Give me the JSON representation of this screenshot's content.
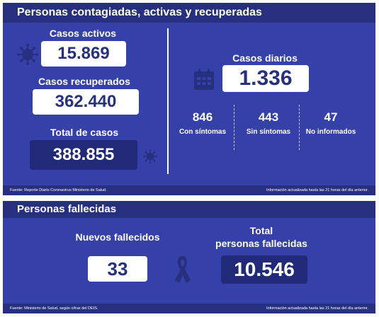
{
  "top": {
    "title": "Personas contagiadas, activas y recuperadas",
    "active_label": "Casos activos",
    "active_value": "15.869",
    "recovered_label": "Casos recuperados",
    "recovered_value": "362.440",
    "total_label": "Total de casos",
    "total_value": "388.855",
    "daily_label": "Casos diarios",
    "daily_value": "1.336",
    "breakdown": [
      {
        "value": "846",
        "label": "Con síntomas"
      },
      {
        "value": "443",
        "label": "Sin síntomas"
      },
      {
        "value": "47",
        "label": "No informados"
      }
    ],
    "footer_source": "Fuente: Reporte Diario Coronavirus Ministerio de Salud.",
    "footer_update": "Información actualizada hasta las 21 horas del día anterior."
  },
  "bottom": {
    "title": "Personas fallecidas",
    "new_label": "Nuevos fallecidos",
    "new_value": "33",
    "total_label_1": "Total",
    "total_label_2": "personas fallecidas",
    "total_value": "10.546",
    "footer_source": "Fuente: Ministerio de Salud, según cifras del DEIS.",
    "footer_update": "Información actualizada hasta las 21 horas del día anterior."
  },
  "colors": {
    "panel": "#3540a8",
    "header": "#26307f",
    "dark_box": "#202a78",
    "icon": "#26307f"
  },
  "icons": {
    "virus": "virus-icon",
    "calendar": "calendar-icon",
    "ribbon": "ribbon-icon"
  }
}
